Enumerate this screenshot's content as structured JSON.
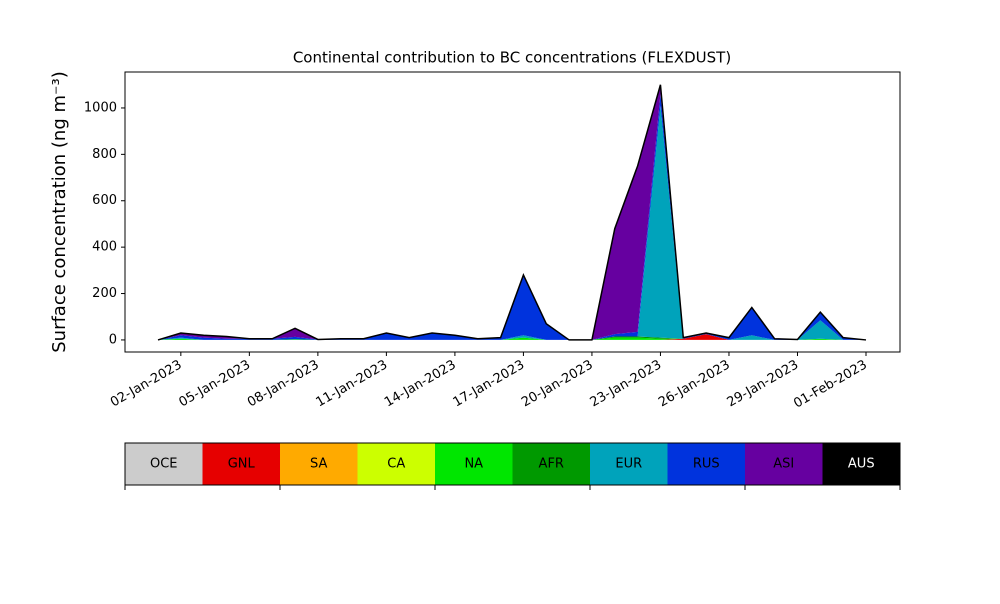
{
  "chart_data": {
    "type": "stacked_area",
    "title": "Continental contribution to BC concentrations (FLEXDUST)",
    "ylabel": "Surface concentration (ng m⁻³)",
    "x": [
      "01-Jan-2023",
      "02-Jan-2023",
      "03-Jan-2023",
      "04-Jan-2023",
      "05-Jan-2023",
      "06-Jan-2023",
      "07-Jan-2023",
      "08-Jan-2023",
      "09-Jan-2023",
      "10-Jan-2023",
      "11-Jan-2023",
      "12-Jan-2023",
      "13-Jan-2023",
      "14-Jan-2023",
      "15-Jan-2023",
      "16-Jan-2023",
      "17-Jan-2023",
      "18-Jan-2023",
      "19-Jan-2023",
      "20-Jan-2023",
      "21-Jan-2023",
      "22-Jan-2023",
      "23-Jan-2023",
      "24-Jan-2023",
      "25-Jan-2023",
      "26-Jan-2023",
      "27-Jan-2023",
      "28-Jan-2023",
      "29-Jan-2023",
      "30-Jan-2023",
      "31-Jan-2023",
      "01-Feb-2023"
    ],
    "xticks": [
      "02-Jan-2023",
      "05-Jan-2023",
      "08-Jan-2023",
      "11-Jan-2023",
      "14-Jan-2023",
      "17-Jan-2023",
      "20-Jan-2023",
      "23-Jan-2023",
      "26-Jan-2023",
      "29-Jan-2023",
      "01-Feb-2023"
    ],
    "ylim": [
      -52,
      1155
    ],
    "yticks": [
      0,
      200,
      400,
      600,
      800,
      1000
    ],
    "series": [
      {
        "name": "OCE",
        "color": "#cccccc",
        "values": [
          0,
          0,
          0,
          0,
          0,
          0,
          0,
          0,
          0,
          0,
          0,
          0,
          0,
          0,
          0,
          0,
          0,
          0,
          0,
          0,
          0,
          0,
          0,
          0,
          0,
          0,
          0,
          0,
          0,
          0,
          0,
          0
        ]
      },
      {
        "name": "GNL",
        "color": "#e60000",
        "values": [
          0,
          0,
          0,
          0,
          0,
          0,
          0,
          0,
          0,
          0,
          0,
          0,
          0,
          0,
          0,
          0,
          0,
          0,
          0,
          0,
          0,
          0,
          0,
          5,
          25,
          0,
          0,
          0,
          0,
          0,
          0,
          0
        ]
      },
      {
        "name": "SA",
        "color": "#ffaa00",
        "values": [
          0,
          0,
          0,
          0,
          0,
          0,
          0,
          0,
          0,
          0,
          0,
          0,
          0,
          0,
          0,
          0,
          0,
          0,
          0,
          0,
          0,
          0,
          0,
          0,
          0,
          0,
          0,
          0,
          0,
          0,
          0,
          0
        ]
      },
      {
        "name": "CA",
        "color": "#ccff00",
        "values": [
          0,
          0,
          0,
          0,
          0,
          0,
          0,
          0,
          0,
          0,
          0,
          0,
          0,
          0,
          0,
          0,
          0,
          0,
          0,
          0,
          0,
          0,
          0,
          0,
          0,
          0,
          0,
          0,
          0,
          0,
          0,
          0
        ]
      },
      {
        "name": "NA",
        "color": "#00e600",
        "values": [
          0,
          5,
          0,
          0,
          0,
          0,
          3,
          0,
          0,
          0,
          0,
          0,
          0,
          0,
          0,
          0,
          10,
          0,
          0,
          0,
          10,
          10,
          5,
          0,
          0,
          0,
          0,
          0,
          0,
          5,
          0,
          0
        ]
      },
      {
        "name": "AFR",
        "color": "#009900",
        "values": [
          0,
          0,
          0,
          0,
          0,
          0,
          0,
          0,
          0,
          0,
          0,
          0,
          0,
          0,
          0,
          0,
          0,
          0,
          0,
          0,
          5,
          5,
          5,
          0,
          0,
          0,
          0,
          0,
          0,
          0,
          0,
          0
        ]
      },
      {
        "name": "EUR",
        "color": "#00a3bb",
        "values": [
          0,
          5,
          0,
          0,
          0,
          0,
          0,
          0,
          0,
          0,
          0,
          0,
          0,
          0,
          0,
          0,
          10,
          0,
          0,
          0,
          0,
          0,
          1000,
          0,
          0,
          0,
          20,
          0,
          0,
          80,
          0,
          0
        ]
      },
      {
        "name": "RUS",
        "color": "#0033dd",
        "values": [
          0,
          10,
          10,
          5,
          5,
          5,
          10,
          2,
          5,
          5,
          30,
          10,
          30,
          20,
          5,
          10,
          260,
          70,
          0,
          0,
          10,
          20,
          50,
          5,
          5,
          10,
          120,
          5,
          2,
          35,
          10,
          0
        ]
      },
      {
        "name": "ASI",
        "color": "#6600a0",
        "values": [
          0,
          10,
          10,
          10,
          0,
          0,
          37,
          0,
          0,
          0,
          0,
          0,
          0,
          0,
          0,
          0,
          0,
          0,
          0,
          0,
          455,
          715,
          40,
          0,
          0,
          0,
          0,
          0,
          0,
          0,
          0,
          0
        ]
      },
      {
        "name": "AUS",
        "color": "#000000",
        "values": [
          0,
          0,
          0,
          0,
          0,
          0,
          0,
          0,
          0,
          0,
          0,
          0,
          0,
          0,
          0,
          0,
          0,
          0,
          0,
          0,
          0,
          0,
          0,
          0,
          0,
          0,
          0,
          0,
          0,
          0,
          0,
          0
        ]
      }
    ]
  }
}
